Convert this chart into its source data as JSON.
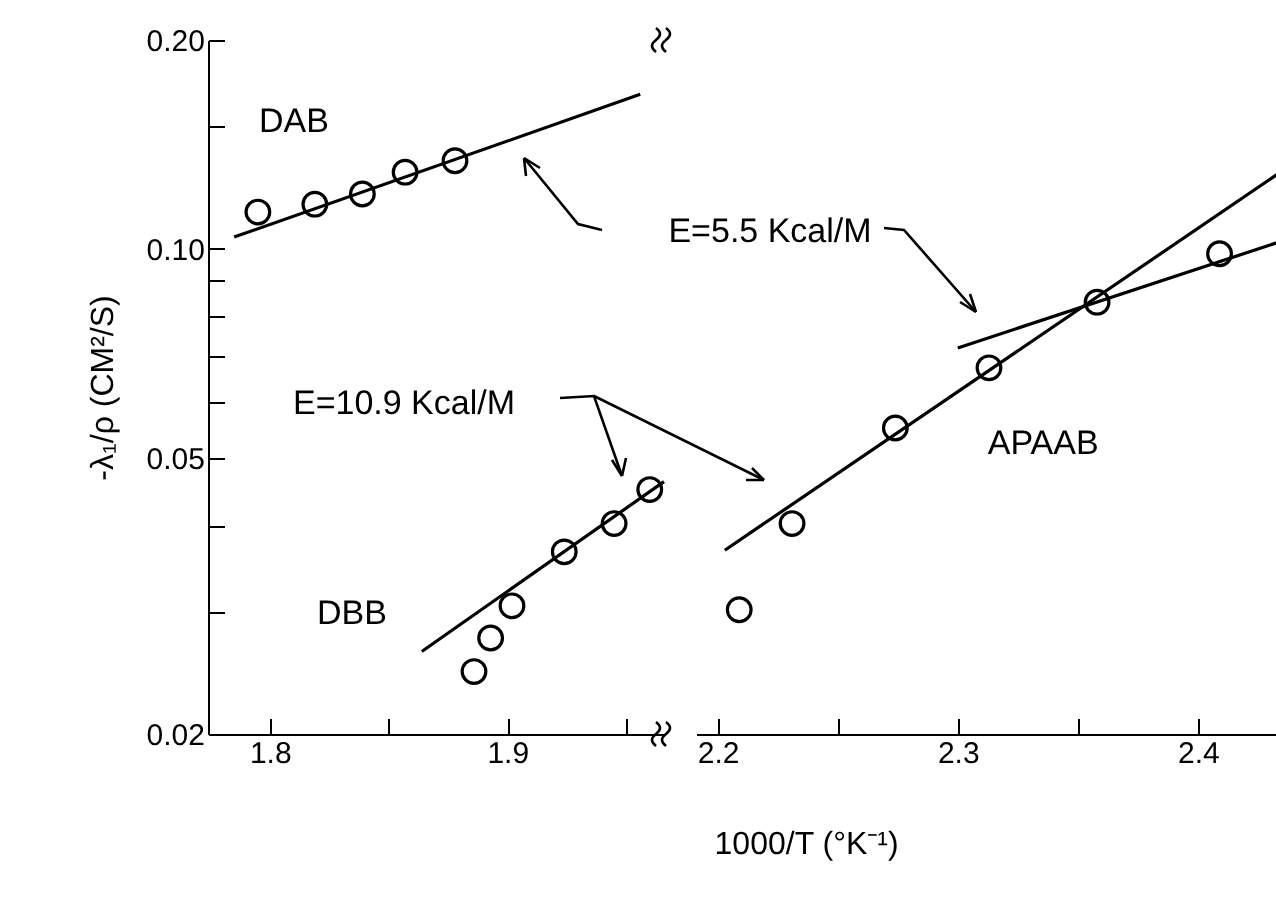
{
  "chart_data": [
    {
      "type": "scatter",
      "xlabel": "1000/T  (°K⁻¹)",
      "ylabel": "-λ₁/ρ   (CM²/S)",
      "log": "y",
      "marker": "circle",
      "grid": false,
      "xlim": [
        1.774,
        1.966
      ],
      "xticks": [
        {
          "value": 1.8,
          "label": "1.8"
        },
        {
          "value": 1.85,
          "label": null
        },
        {
          "value": 1.9,
          "label": "1.9"
        },
        {
          "value": 1.95,
          "label": null
        }
      ],
      "ylim": [
        0.02,
        0.2
      ],
      "yticks": [
        {
          "value": 0.02,
          "label": "0.02"
        },
        {
          "value": 0.03,
          "label": null
        },
        {
          "value": 0.04,
          "label": null
        },
        {
          "value": 0.05,
          "label": "0.05"
        },
        {
          "value": 0.06,
          "label": null
        },
        {
          "value": 0.07,
          "label": null
        },
        {
          "value": 0.08,
          "label": null
        },
        {
          "value": 0.09,
          "label": null
        },
        {
          "value": 0.1,
          "label": "0.10"
        },
        {
          "value": 0.15,
          "label": null
        },
        {
          "value": 0.2,
          "label": "0.20"
        }
      ],
      "annotations": [
        "E=10.9 Kcal/M"
      ],
      "series": [
        {
          "name": "DAB",
          "color": "#000000",
          "x": [
            1.795,
            1.819,
            1.839,
            1.857,
            1.878
          ],
          "values": [
            0.113,
            0.116,
            0.12,
            0.129,
            0.134
          ]
        },
        {
          "type": "line",
          "marker": "none",
          "color": "#000000",
          "x": [
            1.785,
            1.956
          ],
          "values": [
            0.104,
            0.167
          ]
        },
        {
          "name": "DBB",
          "color": "#000000",
          "x": [
            1.886,
            1.893,
            1.902,
            1.924,
            1.945,
            1.96
          ],
          "values": [
            0.0246,
            0.0275,
            0.0306,
            0.0366,
            0.0402,
            0.045
          ]
        },
        {
          "type": "line",
          "marker": "none",
          "color": "#000000",
          "x": [
            1.864,
            1.966
          ],
          "values": [
            0.0263,
            0.0462
          ]
        }
      ]
    },
    {
      "type": "scatter",
      "log": "y",
      "marker": "circle",
      "grid": false,
      "tick_labels": "x",
      "xlim": [
        2.191,
        2.44
      ],
      "xticks": [
        {
          "value": 2.2,
          "label": "2.2"
        },
        {
          "value": 2.25,
          "label": null
        },
        {
          "value": 2.3,
          "label": "2.3"
        },
        {
          "value": 2.35,
          "label": null
        },
        {
          "value": 2.4,
          "label": "2.4"
        }
      ],
      "ylim": [
        0.02,
        0.2
      ],
      "yticks": [
        {
          "value": 0.02,
          "label": null
        },
        {
          "value": 0.03,
          "label": null
        },
        {
          "value": 0.04,
          "label": null
        },
        {
          "value": 0.05,
          "label": null
        },
        {
          "value": 0.06,
          "label": null
        },
        {
          "value": 0.07,
          "label": null
        },
        {
          "value": 0.08,
          "label": null
        },
        {
          "value": 0.09,
          "label": null
        },
        {
          "value": 0.1,
          "label": null
        },
        {
          "value": 0.15,
          "label": null
        },
        {
          "value": 0.2,
          "label": null
        }
      ],
      "annotations": [
        "E=5.5 Kcal/M"
      ],
      "series": [
        {
          "name": "APAAB",
          "color": "#000000",
          "x": [
            2.209,
            2.231,
            2.274,
            2.313,
            2.358,
            2.409
          ],
          "values": [
            0.0302,
            0.0402,
            0.0552,
            0.0674,
            0.0838,
            0.0984
          ]
        },
        {
          "type": "line",
          "marker": "none",
          "color": "#000000",
          "x": [
            2.203,
            2.44
          ],
          "values": [
            0.0368,
            0.133
          ]
        },
        {
          "type": "line",
          "marker": "none",
          "color": "#000000",
          "x": [
            2.3,
            2.44
          ],
          "values": [
            0.072,
            0.104
          ]
        }
      ]
    }
  ]
}
